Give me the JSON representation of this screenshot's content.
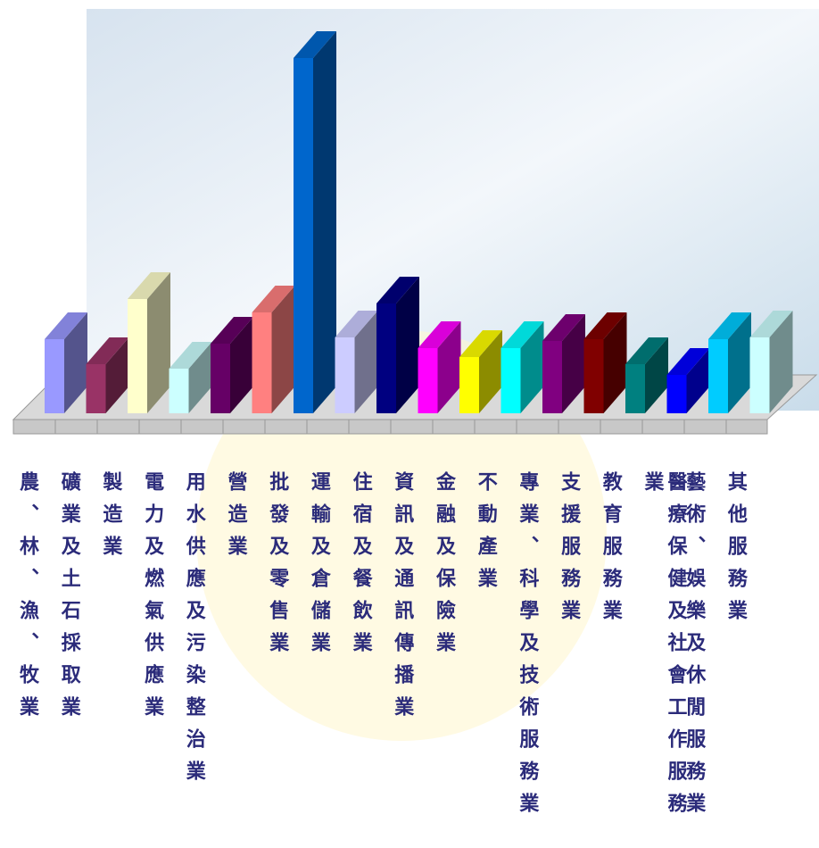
{
  "chart_data": {
    "type": "bar3d",
    "categories": [
      "農、林、漁、牧業",
      "礦業及土石採取業",
      "製造業",
      "電力及燃氣供應業",
      "用水供應及污染整治業",
      "營造業",
      "批發及零售業",
      "運輸及倉儲業",
      "住宿及餐飲業",
      "資訊及通訊傳播業",
      "金融及保險業",
      "不動產業",
      "專業、科學及技術服務業",
      "支援服務業",
      "教育服務業",
      "醫療保健及社會工作服務業",
      "藝術、娛樂及休閒服務業",
      "其他服務業"
    ],
    "values": [
      83,
      55,
      128,
      50,
      78,
      113,
      398,
      85,
      123,
      73,
      63,
      73,
      81,
      83,
      55,
      43,
      83,
      85
    ],
    "colors": [
      "#9999ff",
      "#993366",
      "#ffffcc",
      "#ccffff",
      "#660066",
      "#ff8080",
      "#0066cc",
      "#ccccff",
      "#000080",
      "#ff00ff",
      "#ffff00",
      "#00ffff",
      "#800080",
      "#800000",
      "#008080",
      "#0000ff",
      "#00ccff",
      "#ccffff"
    ]
  }
}
